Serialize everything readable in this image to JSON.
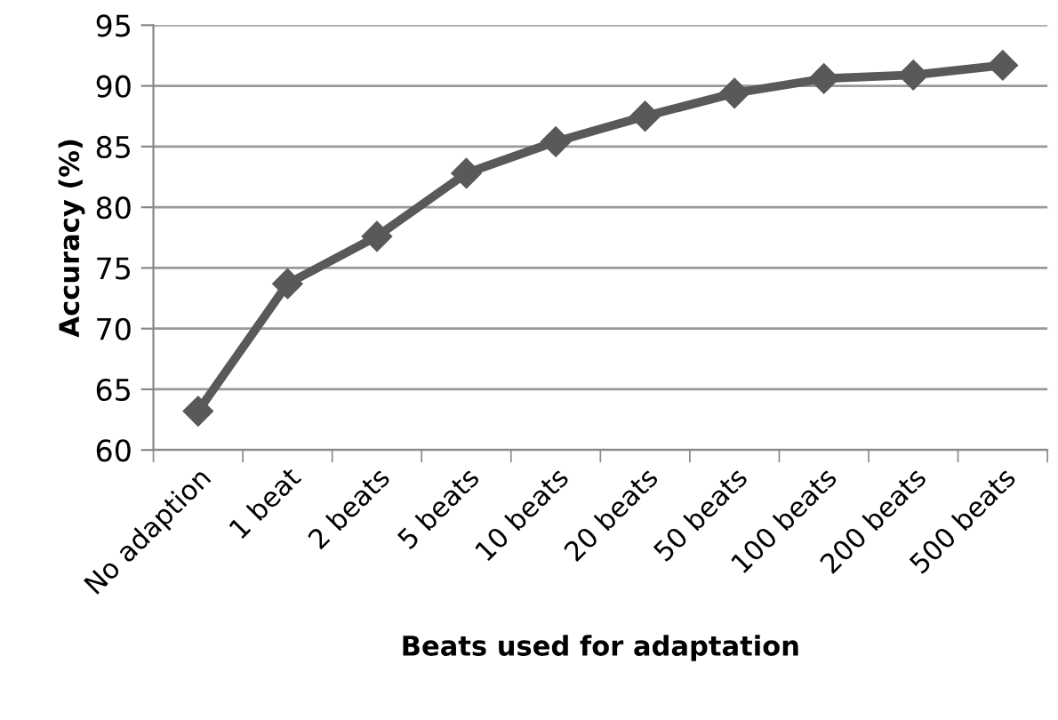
{
  "chart_data": {
    "type": "line",
    "xlabel": "Beats used for adaptation",
    "ylabel": "Accuracy (%)",
    "categories": [
      "No adaption",
      "1 beat",
      "2 beats",
      "5 beats",
      "10 beats",
      "20 beats",
      "50 beats",
      "100 beats",
      "200 beats",
      "500 beats"
    ],
    "series": [
      {
        "color": "#595959",
        "values": [
          63.2,
          73.7,
          77.6,
          82.8,
          85.4,
          87.5,
          89.4,
          90.6,
          90.9,
          91.7
        ]
      }
    ],
    "ylim": [
      60,
      95
    ],
    "yticks": [
      60,
      65,
      70,
      75,
      80,
      85,
      90,
      95
    ],
    "grid": "y",
    "marker": "diamond",
    "line_style": "solid"
  }
}
